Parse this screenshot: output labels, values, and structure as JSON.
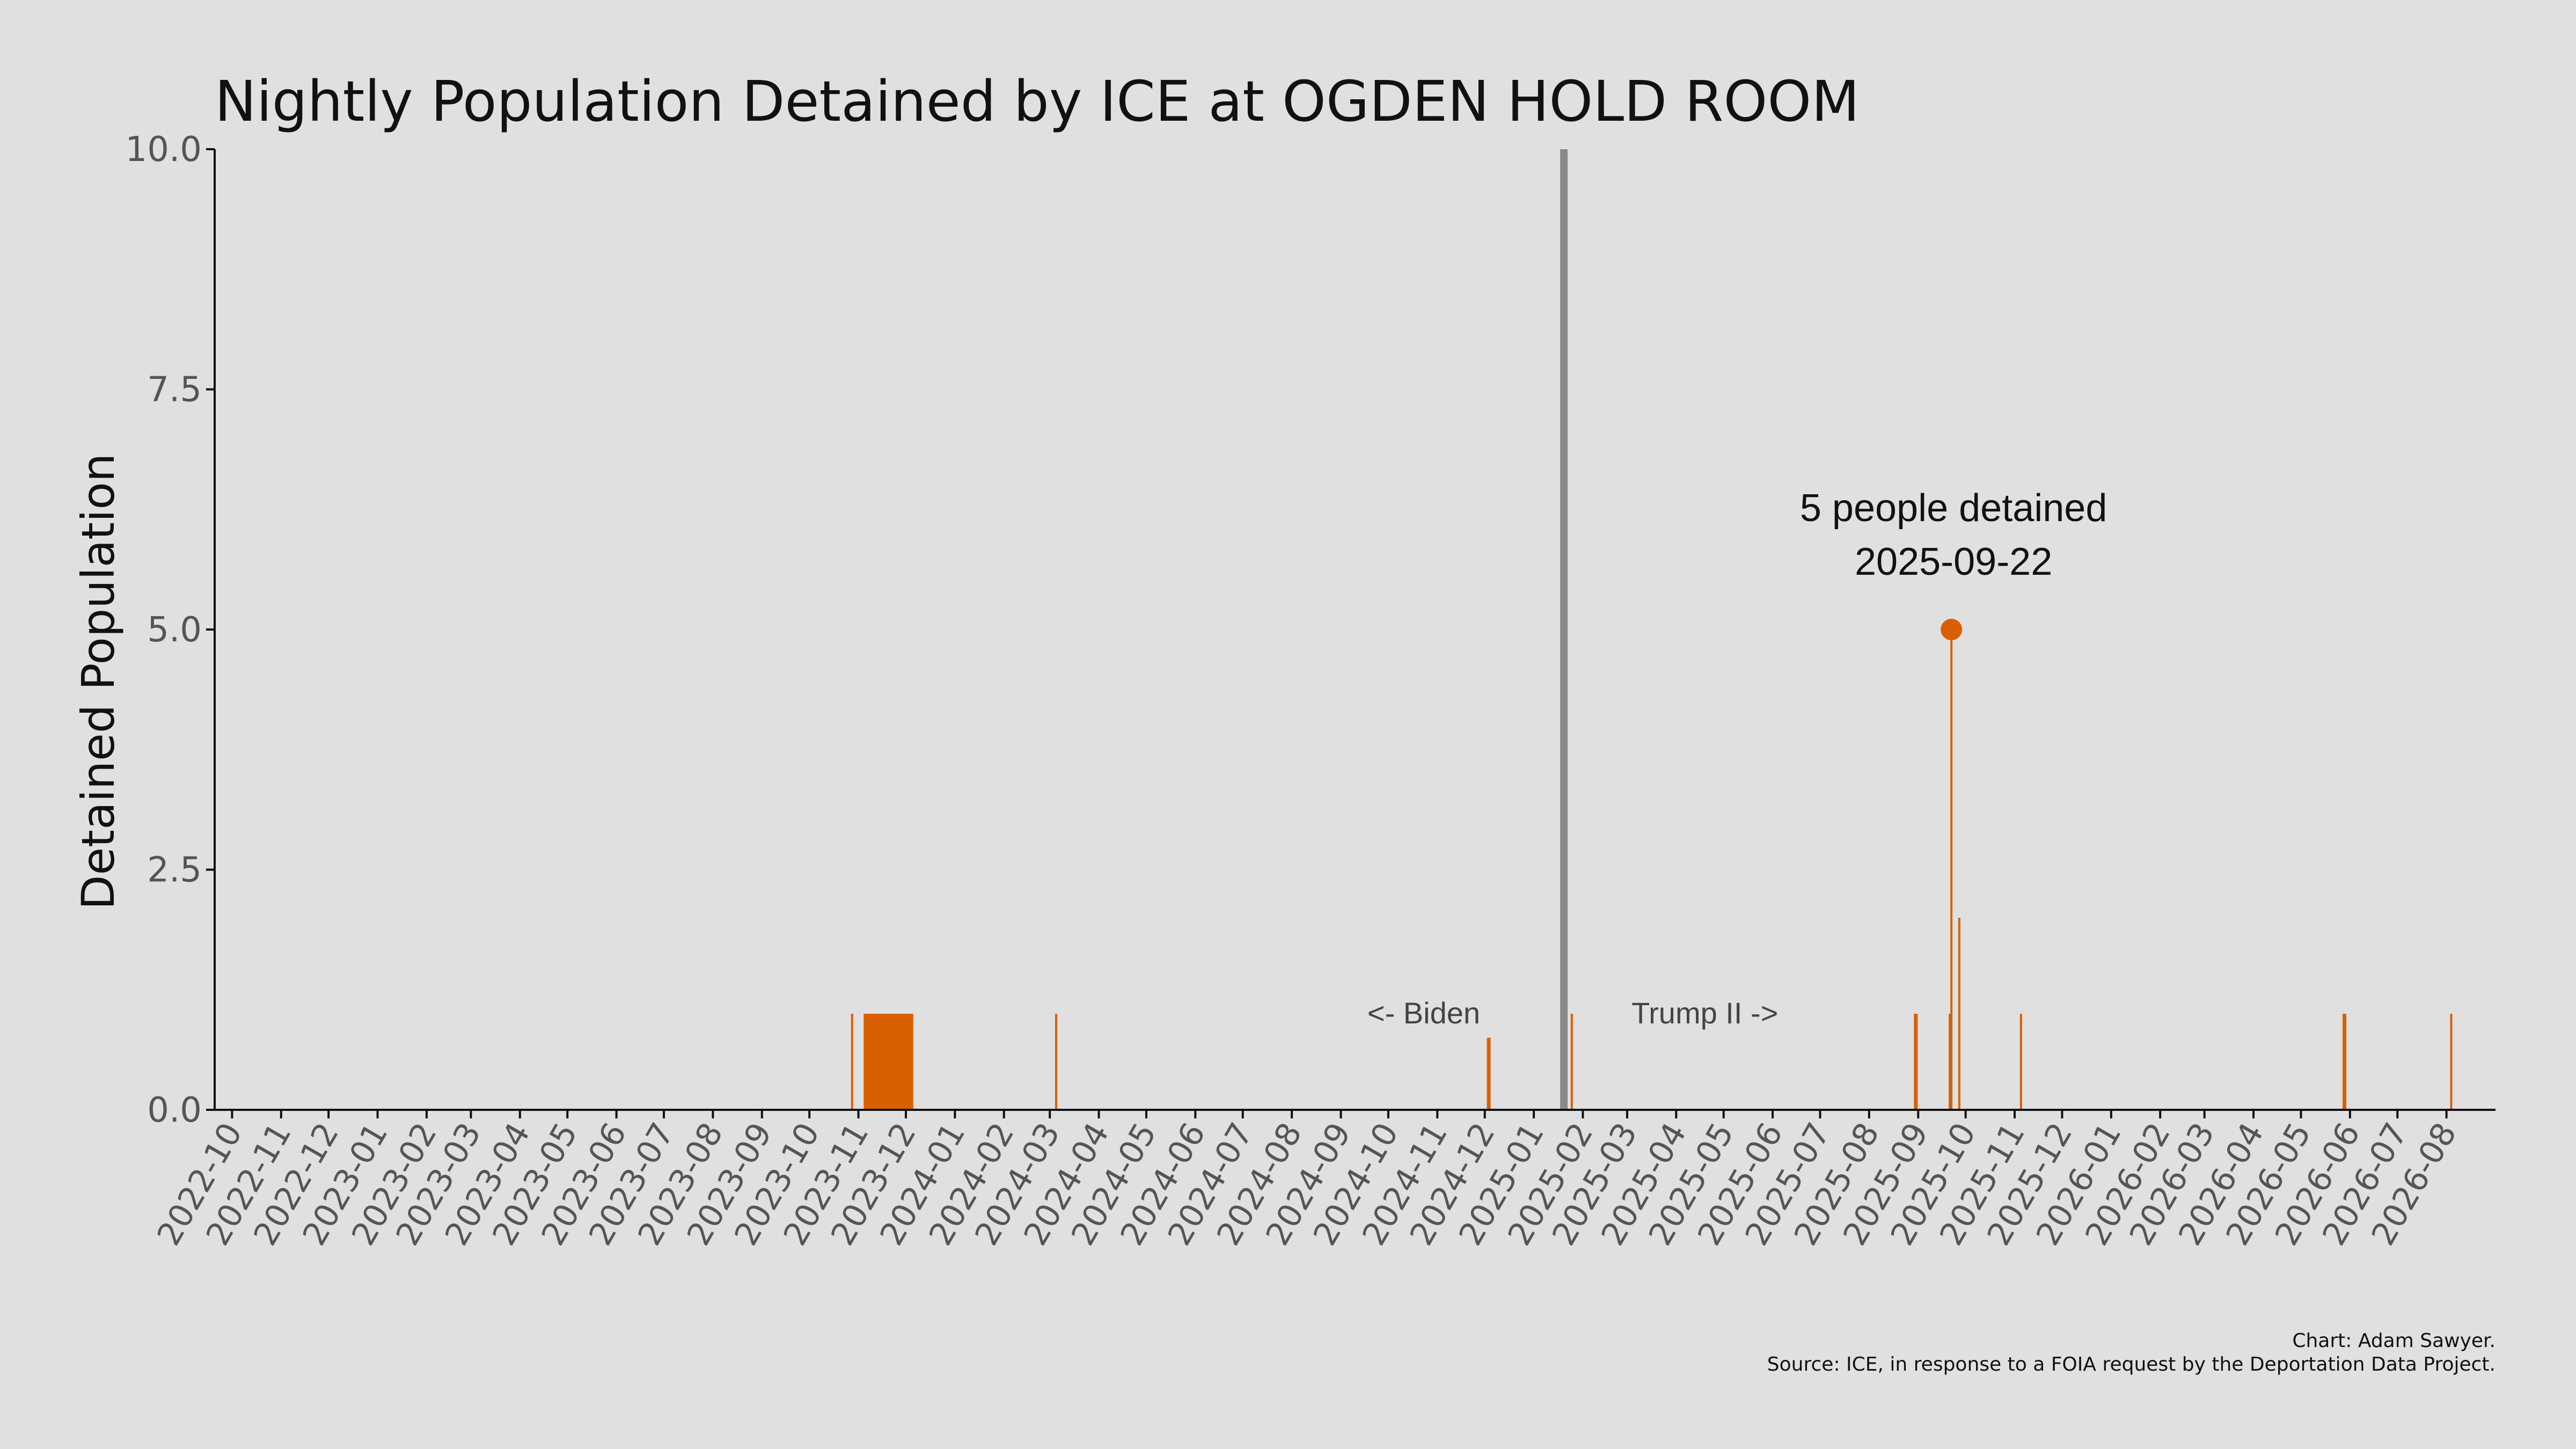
{
  "chart_data": {
    "type": "bar",
    "title": "Nightly Population Detained by ICE at OGDEN HOLD ROOM",
    "xlabel": "",
    "ylabel": "Detained Population",
    "ylim": [
      0,
      10
    ],
    "yticks": [
      "0.0",
      "2.5",
      "5.0",
      "7.5",
      "10.0"
    ],
    "xticks": [
      "2022-10",
      "2022-11",
      "2022-12",
      "2023-01",
      "2023-02",
      "2023-03",
      "2023-04",
      "2023-05",
      "2023-06",
      "2023-07",
      "2023-08",
      "2023-09",
      "2023-10",
      "2023-11",
      "2023-12",
      "2024-01",
      "2024-02",
      "2024-03",
      "2024-04",
      "2024-05",
      "2024-06",
      "2024-07",
      "2024-08",
      "2024-09",
      "2024-10",
      "2024-11",
      "2024-12",
      "2025-01",
      "2025-02",
      "2025-03",
      "2025-04",
      "2025-05",
      "2025-06",
      "2025-07",
      "2025-08",
      "2025-09",
      "2025-10",
      "2025-11",
      "2025-12",
      "2026-01",
      "2026-02",
      "2026-03",
      "2026-04",
      "2026-05",
      "2026-06",
      "2026-07",
      "2026-08"
    ],
    "grid": false,
    "bar_color": "#d95f02",
    "series": [
      {
        "points": [
          {
            "date": "2023-10-28",
            "value": 1
          },
          {
            "date": "2023-11-05",
            "value": 1
          },
          {
            "date": "2023-11-06",
            "value": 1
          },
          {
            "date": "2023-11-07",
            "value": 1
          },
          {
            "date": "2023-11-08",
            "value": 1
          },
          {
            "date": "2023-11-09",
            "value": 1
          },
          {
            "date": "2023-11-10",
            "value": 1
          },
          {
            "date": "2023-11-11",
            "value": 1
          },
          {
            "date": "2023-11-12",
            "value": 1
          },
          {
            "date": "2023-11-13",
            "value": 1
          },
          {
            "date": "2023-11-14",
            "value": 1
          },
          {
            "date": "2023-11-15",
            "value": 1
          },
          {
            "date": "2023-11-16",
            "value": 1
          },
          {
            "date": "2023-11-17",
            "value": 1
          },
          {
            "date": "2023-11-18",
            "value": 1
          },
          {
            "date": "2023-11-19",
            "value": 1
          },
          {
            "date": "2023-11-20",
            "value": 1
          },
          {
            "date": "2023-11-21",
            "value": 1
          },
          {
            "date": "2023-11-22",
            "value": 1
          },
          {
            "date": "2023-11-23",
            "value": 1
          },
          {
            "date": "2023-11-24",
            "value": 1
          },
          {
            "date": "2023-11-25",
            "value": 1
          },
          {
            "date": "2023-11-26",
            "value": 1
          },
          {
            "date": "2023-11-27",
            "value": 1
          },
          {
            "date": "2023-11-28",
            "value": 1
          },
          {
            "date": "2023-11-29",
            "value": 1
          },
          {
            "date": "2023-11-30",
            "value": 1
          },
          {
            "date": "2023-12-01",
            "value": 1
          },
          {
            "date": "2023-12-02",
            "value": 1
          },
          {
            "date": "2023-12-03",
            "value": 1
          },
          {
            "date": "2023-12-04",
            "value": 1
          },
          {
            "date": "2023-12-05",
            "value": 1
          },
          {
            "date": "2024-03-05",
            "value": 1
          },
          {
            "date": "2024-12-03",
            "value": 0.75
          },
          {
            "date": "2024-12-04",
            "value": 0.75
          },
          {
            "date": "2025-01-25",
            "value": 1
          },
          {
            "date": "2025-08-30",
            "value": 1
          },
          {
            "date": "2025-08-31",
            "value": 1
          },
          {
            "date": "2025-09-21",
            "value": 1
          },
          {
            "date": "2025-09-22",
            "value": 5
          },
          {
            "date": "2025-09-27",
            "value": 2
          },
          {
            "date": "2025-11-05",
            "value": 1
          },
          {
            "date": "2026-05-28",
            "value": 1
          },
          {
            "date": "2026-05-29",
            "value": 1
          },
          {
            "date": "2026-08-04",
            "value": 1
          }
        ]
      }
    ],
    "highlight": {
      "date": "2025-09-22",
      "value": 5,
      "label_line1": "5 people detained",
      "label_line2": "2025-09-22"
    },
    "divider": {
      "date": "2025-01-20",
      "color": "#888888",
      "left_label": "<- Biden",
      "right_label": "Trump II ->"
    }
  },
  "caption": {
    "line1": "Chart: Adam Sawyer.",
    "line2": "Source: ICE, in response to a FOIA request by the Deportation Data Project."
  }
}
